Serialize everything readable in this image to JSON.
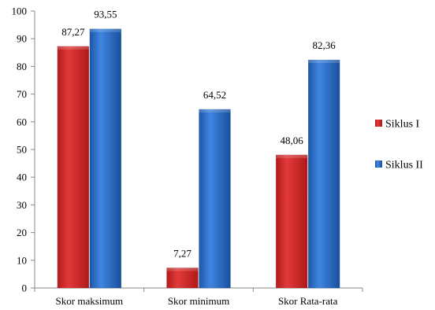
{
  "chart_data": {
    "type": "bar",
    "categories": [
      "Skor maksimum",
      "Skor minimum",
      "Skor Rata-rata"
    ],
    "series": [
      {
        "name": "Siklus I",
        "values": [
          87.27,
          7.27,
          48.06
        ],
        "labels": [
          "87,27",
          "7,27",
          "48,06"
        ],
        "color": "#d42a2a"
      },
      {
        "name": "Siklus II",
        "values": [
          93.55,
          64.52,
          82.36
        ],
        "labels": [
          "93,55",
          "64,52",
          "82,36"
        ],
        "color": "#2a6bc6"
      }
    ],
    "ylim": [
      0,
      100
    ],
    "yticks": [
      0,
      10,
      20,
      30,
      40,
      50,
      60,
      70,
      80,
      90,
      100
    ],
    "title": "",
    "xlabel": "",
    "ylabel": "",
    "grid": false,
    "legend_position": "right"
  }
}
